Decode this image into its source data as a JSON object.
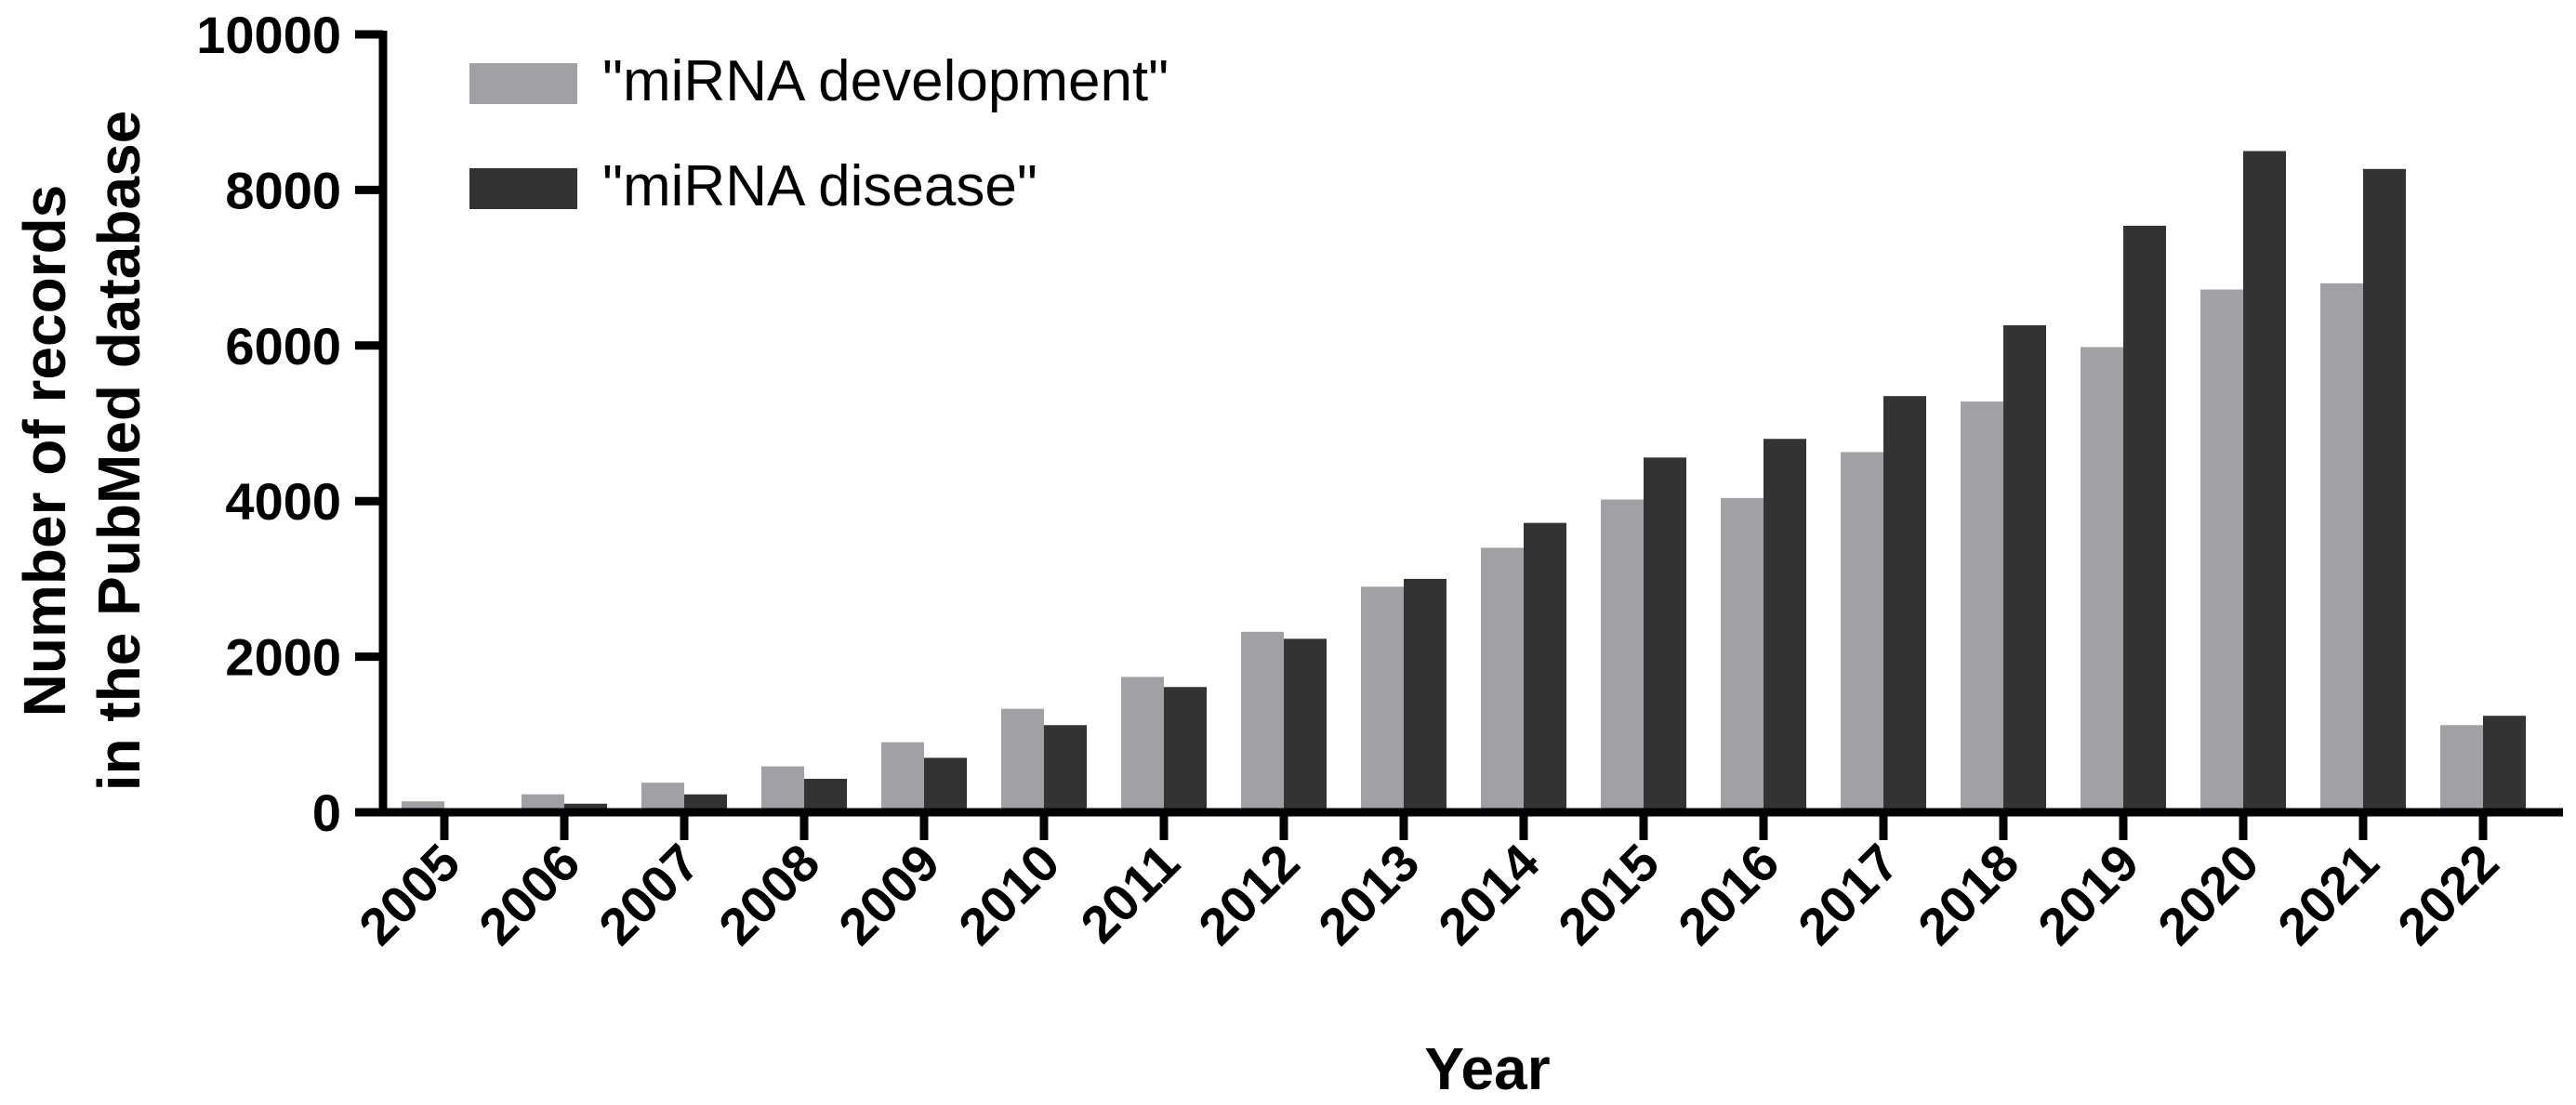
{
  "chart_data": {
    "type": "bar",
    "xlabel": "Year",
    "ylabel_line1": "Number of records",
    "ylabel_line2": "in the PubMed database",
    "categories": [
      "2005",
      "2006",
      "2007",
      "2008",
      "2009",
      "2010",
      "2011",
      "2012",
      "2013",
      "2014",
      "2015",
      "2016",
      "2017",
      "2018",
      "2019",
      "2020",
      "2021",
      "2022"
    ],
    "series": [
      {
        "name": "\"miRNA development\"",
        "color": "#a0a0a5",
        "values": [
          140,
          230,
          380,
          590,
          900,
          1330,
          1740,
          2320,
          2900,
          3400,
          4020,
          4040,
          4630,
          5280,
          5980,
          6720,
          6800,
          1120
        ]
      },
      {
        "name": "\"miRNA disease\"",
        "color": "#333333",
        "values": [
          50,
          110,
          230,
          430,
          700,
          1120,
          1610,
          2230,
          3000,
          3720,
          4560,
          4800,
          5350,
          6260,
          7540,
          8500,
          8270,
          1240
        ]
      }
    ],
    "ylim": [
      0,
      10000
    ],
    "yticks": [
      "0",
      "2000",
      "4000",
      "6000",
      "8000",
      "10000"
    ],
    "grid": false,
    "legend_position": "top-left"
  }
}
